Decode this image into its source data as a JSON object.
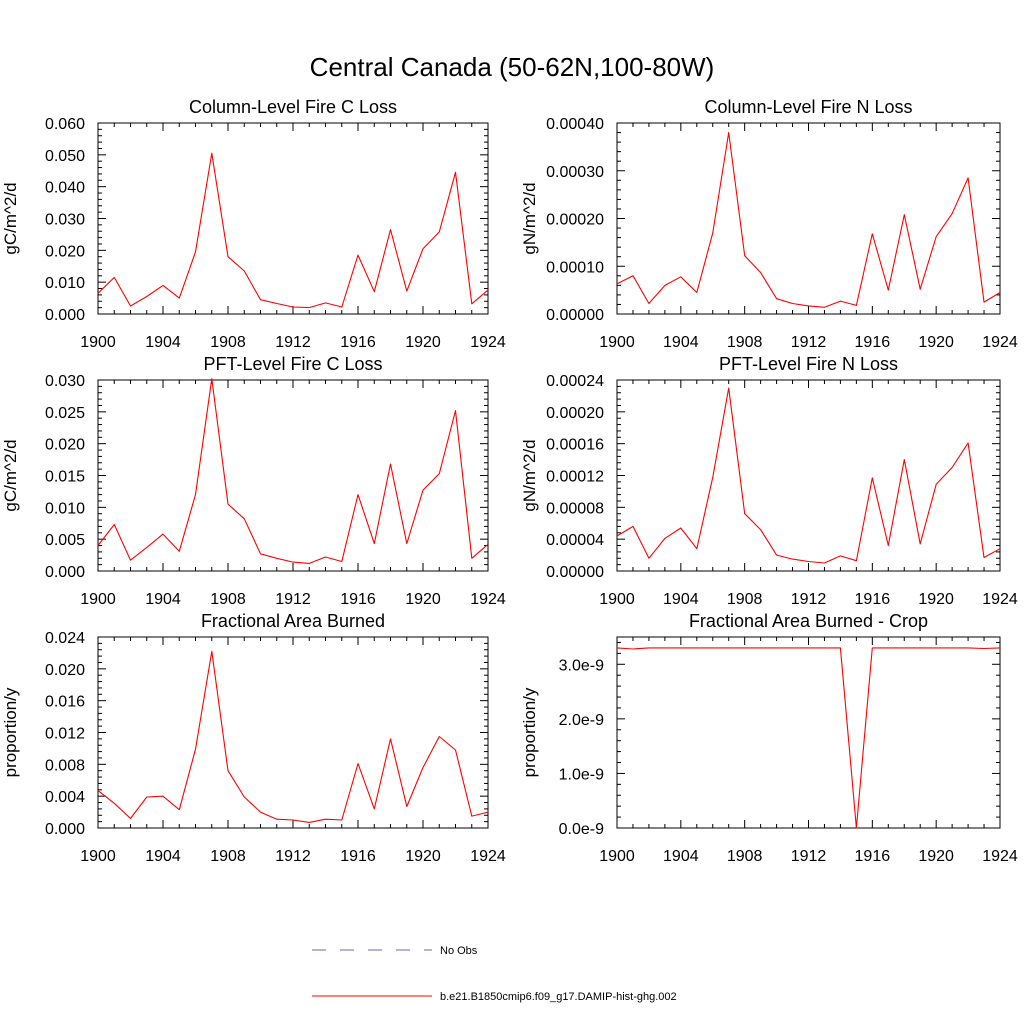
{
  "figure": {
    "title": "Central Canada (50-62N,100-80W)"
  },
  "legend": {
    "entries": [
      {
        "label": "No Obs",
        "color": "#6a6ab0",
        "dash": true
      },
      {
        "label": "b.e21.B1850cmip6.f09_g17.DAMIP-hist-ghg.002",
        "color": "#ff0000",
        "dash": false
      }
    ]
  },
  "chart_data": [
    {
      "type": "line",
      "title": "Column-Level Fire C Loss",
      "ylabel": "gC/m^2/d",
      "xlim": [
        1900,
        1924
      ],
      "ylim": [
        0,
        0.06
      ],
      "xticks": [
        1900,
        1904,
        1908,
        1912,
        1916,
        1920,
        1924
      ],
      "xtick_labels": [
        "1900",
        "1904",
        "1908",
        "1912",
        "1916",
        "1920",
        "1924"
      ],
      "yticks": [
        0,
        0.01,
        0.02,
        0.03,
        0.04,
        0.05,
        0.06
      ],
      "ytick_labels": [
        "0.000",
        "0.010",
        "0.020",
        "0.030",
        "0.040",
        "0.050",
        "0.060"
      ],
      "x": [
        1900,
        1901,
        1902,
        1903,
        1904,
        1905,
        1906,
        1907,
        1908,
        1909,
        1910,
        1911,
        1912,
        1913,
        1914,
        1915,
        1916,
        1917,
        1918,
        1919,
        1920,
        1921,
        1922,
        1923,
        1924
      ],
      "series": [
        {
          "color": "#ff0000",
          "values": [
            0.0065,
            0.0115,
            0.0025,
            0.0055,
            0.009,
            0.005,
            0.0195,
            0.0505,
            0.018,
            0.0135,
            0.0045,
            0.0033,
            0.0022,
            0.002,
            0.0035,
            0.0022,
            0.0185,
            0.007,
            0.0265,
            0.0072,
            0.0205,
            0.0258,
            0.0445,
            0.0032,
            0.0075
          ]
        }
      ]
    },
    {
      "type": "line",
      "title": "Column-Level Fire N Loss",
      "ylabel": "gN/m^2/d",
      "xlim": [
        1900,
        1924
      ],
      "ylim": [
        0,
        0.0004
      ],
      "xticks": [
        1900,
        1904,
        1908,
        1912,
        1916,
        1920,
        1924
      ],
      "xtick_labels": [
        "1900",
        "1904",
        "1908",
        "1912",
        "1916",
        "1920",
        "1924"
      ],
      "yticks": [
        0,
        0.0001,
        0.0002,
        0.0003,
        0.0004
      ],
      "ytick_labels": [
        "0.00000",
        "0.00010",
        "0.00020",
        "0.00030",
        "0.00040"
      ],
      "x": [
        1900,
        1901,
        1902,
        1903,
        1904,
        1905,
        1906,
        1907,
        1908,
        1909,
        1910,
        1911,
        1912,
        1913,
        1914,
        1915,
        1916,
        1917,
        1918,
        1919,
        1920,
        1921,
        1922,
        1923,
        1924
      ],
      "series": [
        {
          "color": "#ff0000",
          "values": [
            6.3e-05,
            8e-05,
            2.2e-05,
            6e-05,
            7.8e-05,
            4.5e-05,
            0.00017,
            0.00038,
            0.000122,
            8.7e-05,
            3.2e-05,
            2.2e-05,
            1.7e-05,
            1.4e-05,
            2.7e-05,
            1.8e-05,
            0.000168,
            5e-05,
            0.000208,
            5.2e-05,
            0.000162,
            0.00021,
            0.000285,
            2.5e-05,
            4.5e-05
          ]
        }
      ]
    },
    {
      "type": "line",
      "title": "PFT-Level Fire C Loss",
      "ylabel": "gC/m^2/d",
      "xlim": [
        1900,
        1924
      ],
      "ylim": [
        0,
        0.03
      ],
      "xticks": [
        1900,
        1904,
        1908,
        1912,
        1916,
        1920,
        1924
      ],
      "xtick_labels": [
        "1900",
        "1904",
        "1908",
        "1912",
        "1916",
        "1920",
        "1924"
      ],
      "yticks": [
        0,
        0.005,
        0.01,
        0.015,
        0.02,
        0.025,
        0.03
      ],
      "ytick_labels": [
        "0.000",
        "0.005",
        "0.010",
        "0.015",
        "0.020",
        "0.025",
        "0.030"
      ],
      "x": [
        1900,
        1901,
        1902,
        1903,
        1904,
        1905,
        1906,
        1907,
        1908,
        1909,
        1910,
        1911,
        1912,
        1913,
        1914,
        1915,
        1916,
        1917,
        1918,
        1919,
        1920,
        1921,
        1922,
        1923,
        1924
      ],
      "series": [
        {
          "color": "#ff0000",
          "values": [
            0.004,
            0.0073,
            0.0017,
            0.0037,
            0.0058,
            0.0031,
            0.012,
            0.0302,
            0.0105,
            0.0082,
            0.0027,
            0.002,
            0.0014,
            0.0012,
            0.0022,
            0.0015,
            0.012,
            0.0043,
            0.0168,
            0.0043,
            0.0127,
            0.0153,
            0.0252,
            0.002,
            0.0042
          ]
        }
      ]
    },
    {
      "type": "line",
      "title": "PFT-Level Fire N Loss",
      "ylabel": "gN/m^2/d",
      "xlim": [
        1900,
        1924
      ],
      "ylim": [
        0,
        0.00024
      ],
      "xticks": [
        1900,
        1904,
        1908,
        1912,
        1916,
        1920,
        1924
      ],
      "xtick_labels": [
        "1900",
        "1904",
        "1908",
        "1912",
        "1916",
        "1920",
        "1924"
      ],
      "yticks": [
        0,
        4e-05,
        8e-05,
        0.00012,
        0.00016,
        0.0002,
        0.00024
      ],
      "ytick_labels": [
        "0.00000",
        "0.00004",
        "0.00008",
        "0.00012",
        "0.00016",
        "0.00020",
        "0.00024"
      ],
      "x": [
        1900,
        1901,
        1902,
        1903,
        1904,
        1905,
        1906,
        1907,
        1908,
        1909,
        1910,
        1911,
        1912,
        1913,
        1914,
        1915,
        1916,
        1917,
        1918,
        1919,
        1920,
        1921,
        1922,
        1923,
        1924
      ],
      "series": [
        {
          "color": "#ff0000",
          "values": [
            4.4e-05,
            5.6e-05,
            1.6e-05,
            4.1e-05,
            5.4e-05,
            2.8e-05,
            0.000118,
            0.00023,
            7.2e-05,
            5.2e-05,
            2e-05,
            1.5e-05,
            1.2e-05,
            1e-05,
            1.9e-05,
            1.3e-05,
            0.000117,
            3.2e-05,
            0.00014,
            3.4e-05,
            0.000109,
            0.00013,
            0.000161,
            1.7e-05,
            2.8e-05
          ]
        }
      ]
    },
    {
      "type": "line",
      "title": "Fractional Area Burned",
      "ylabel": "proportion/y",
      "xlim": [
        1900,
        1924
      ],
      "ylim": [
        0,
        0.024
      ],
      "xticks": [
        1900,
        1904,
        1908,
        1912,
        1916,
        1920,
        1924
      ],
      "xtick_labels": [
        "1900",
        "1904",
        "1908",
        "1912",
        "1916",
        "1920",
        "1924"
      ],
      "yticks": [
        0,
        0.004,
        0.008,
        0.012,
        0.016,
        0.02,
        0.024
      ],
      "ytick_labels": [
        "0.000",
        "0.004",
        "0.008",
        "0.012",
        "0.016",
        "0.020",
        "0.024"
      ],
      "x": [
        1900,
        1901,
        1902,
        1903,
        1904,
        1905,
        1906,
        1907,
        1908,
        1909,
        1910,
        1911,
        1912,
        1913,
        1914,
        1915,
        1916,
        1917,
        1918,
        1919,
        1920,
        1921,
        1922,
        1923,
        1924
      ],
      "series": [
        {
          "color": "#ff0000",
          "values": [
            0.0047,
            0.0031,
            0.0012,
            0.0039,
            0.004,
            0.0023,
            0.0099,
            0.0222,
            0.0072,
            0.0039,
            0.002,
            0.0011,
            0.001,
            0.0007,
            0.0011,
            0.001,
            0.0081,
            0.0024,
            0.0112,
            0.0027,
            0.0076,
            0.0115,
            0.0098,
            0.0015,
            0.002
          ]
        }
      ]
    },
    {
      "type": "line",
      "title": "Fractional Area Burned - Crop",
      "ylabel": "proportion/y",
      "xlim": [
        1900,
        1924
      ],
      "ylim": [
        0,
        3.5e-09
      ],
      "xticks": [
        1900,
        1904,
        1908,
        1912,
        1916,
        1920,
        1924
      ],
      "xtick_labels": [
        "1900",
        "1904",
        "1908",
        "1912",
        "1916",
        "1920",
        "1924"
      ],
      "yticks": [
        0,
        1e-09,
        2e-09,
        3e-09
      ],
      "ytick_labels": [
        "0.0e-9",
        "1.0e-9",
        "2.0e-9",
        "3.0e-9"
      ],
      "x": [
        1900,
        1901,
        1902,
        1903,
        1904,
        1905,
        1906,
        1907,
        1908,
        1909,
        1910,
        1911,
        1912,
        1913,
        1914,
        1915,
        1916,
        1917,
        1918,
        1919,
        1920,
        1921,
        1922,
        1923,
        1924
      ],
      "series": [
        {
          "color": "#ff0000",
          "values": [
            3.3e-09,
            3.28e-09,
            3.3e-09,
            3.3e-09,
            3.3e-09,
            3.3e-09,
            3.3e-09,
            3.3e-09,
            3.3e-09,
            3.3e-09,
            3.3e-09,
            3.3e-09,
            3.3e-09,
            3.3e-09,
            3.3e-09,
            0,
            3.3e-09,
            3.3e-09,
            3.3e-09,
            3.3e-09,
            3.3e-09,
            3.3e-09,
            3.3e-09,
            3.29e-09,
            3.3e-09
          ]
        }
      ]
    }
  ]
}
